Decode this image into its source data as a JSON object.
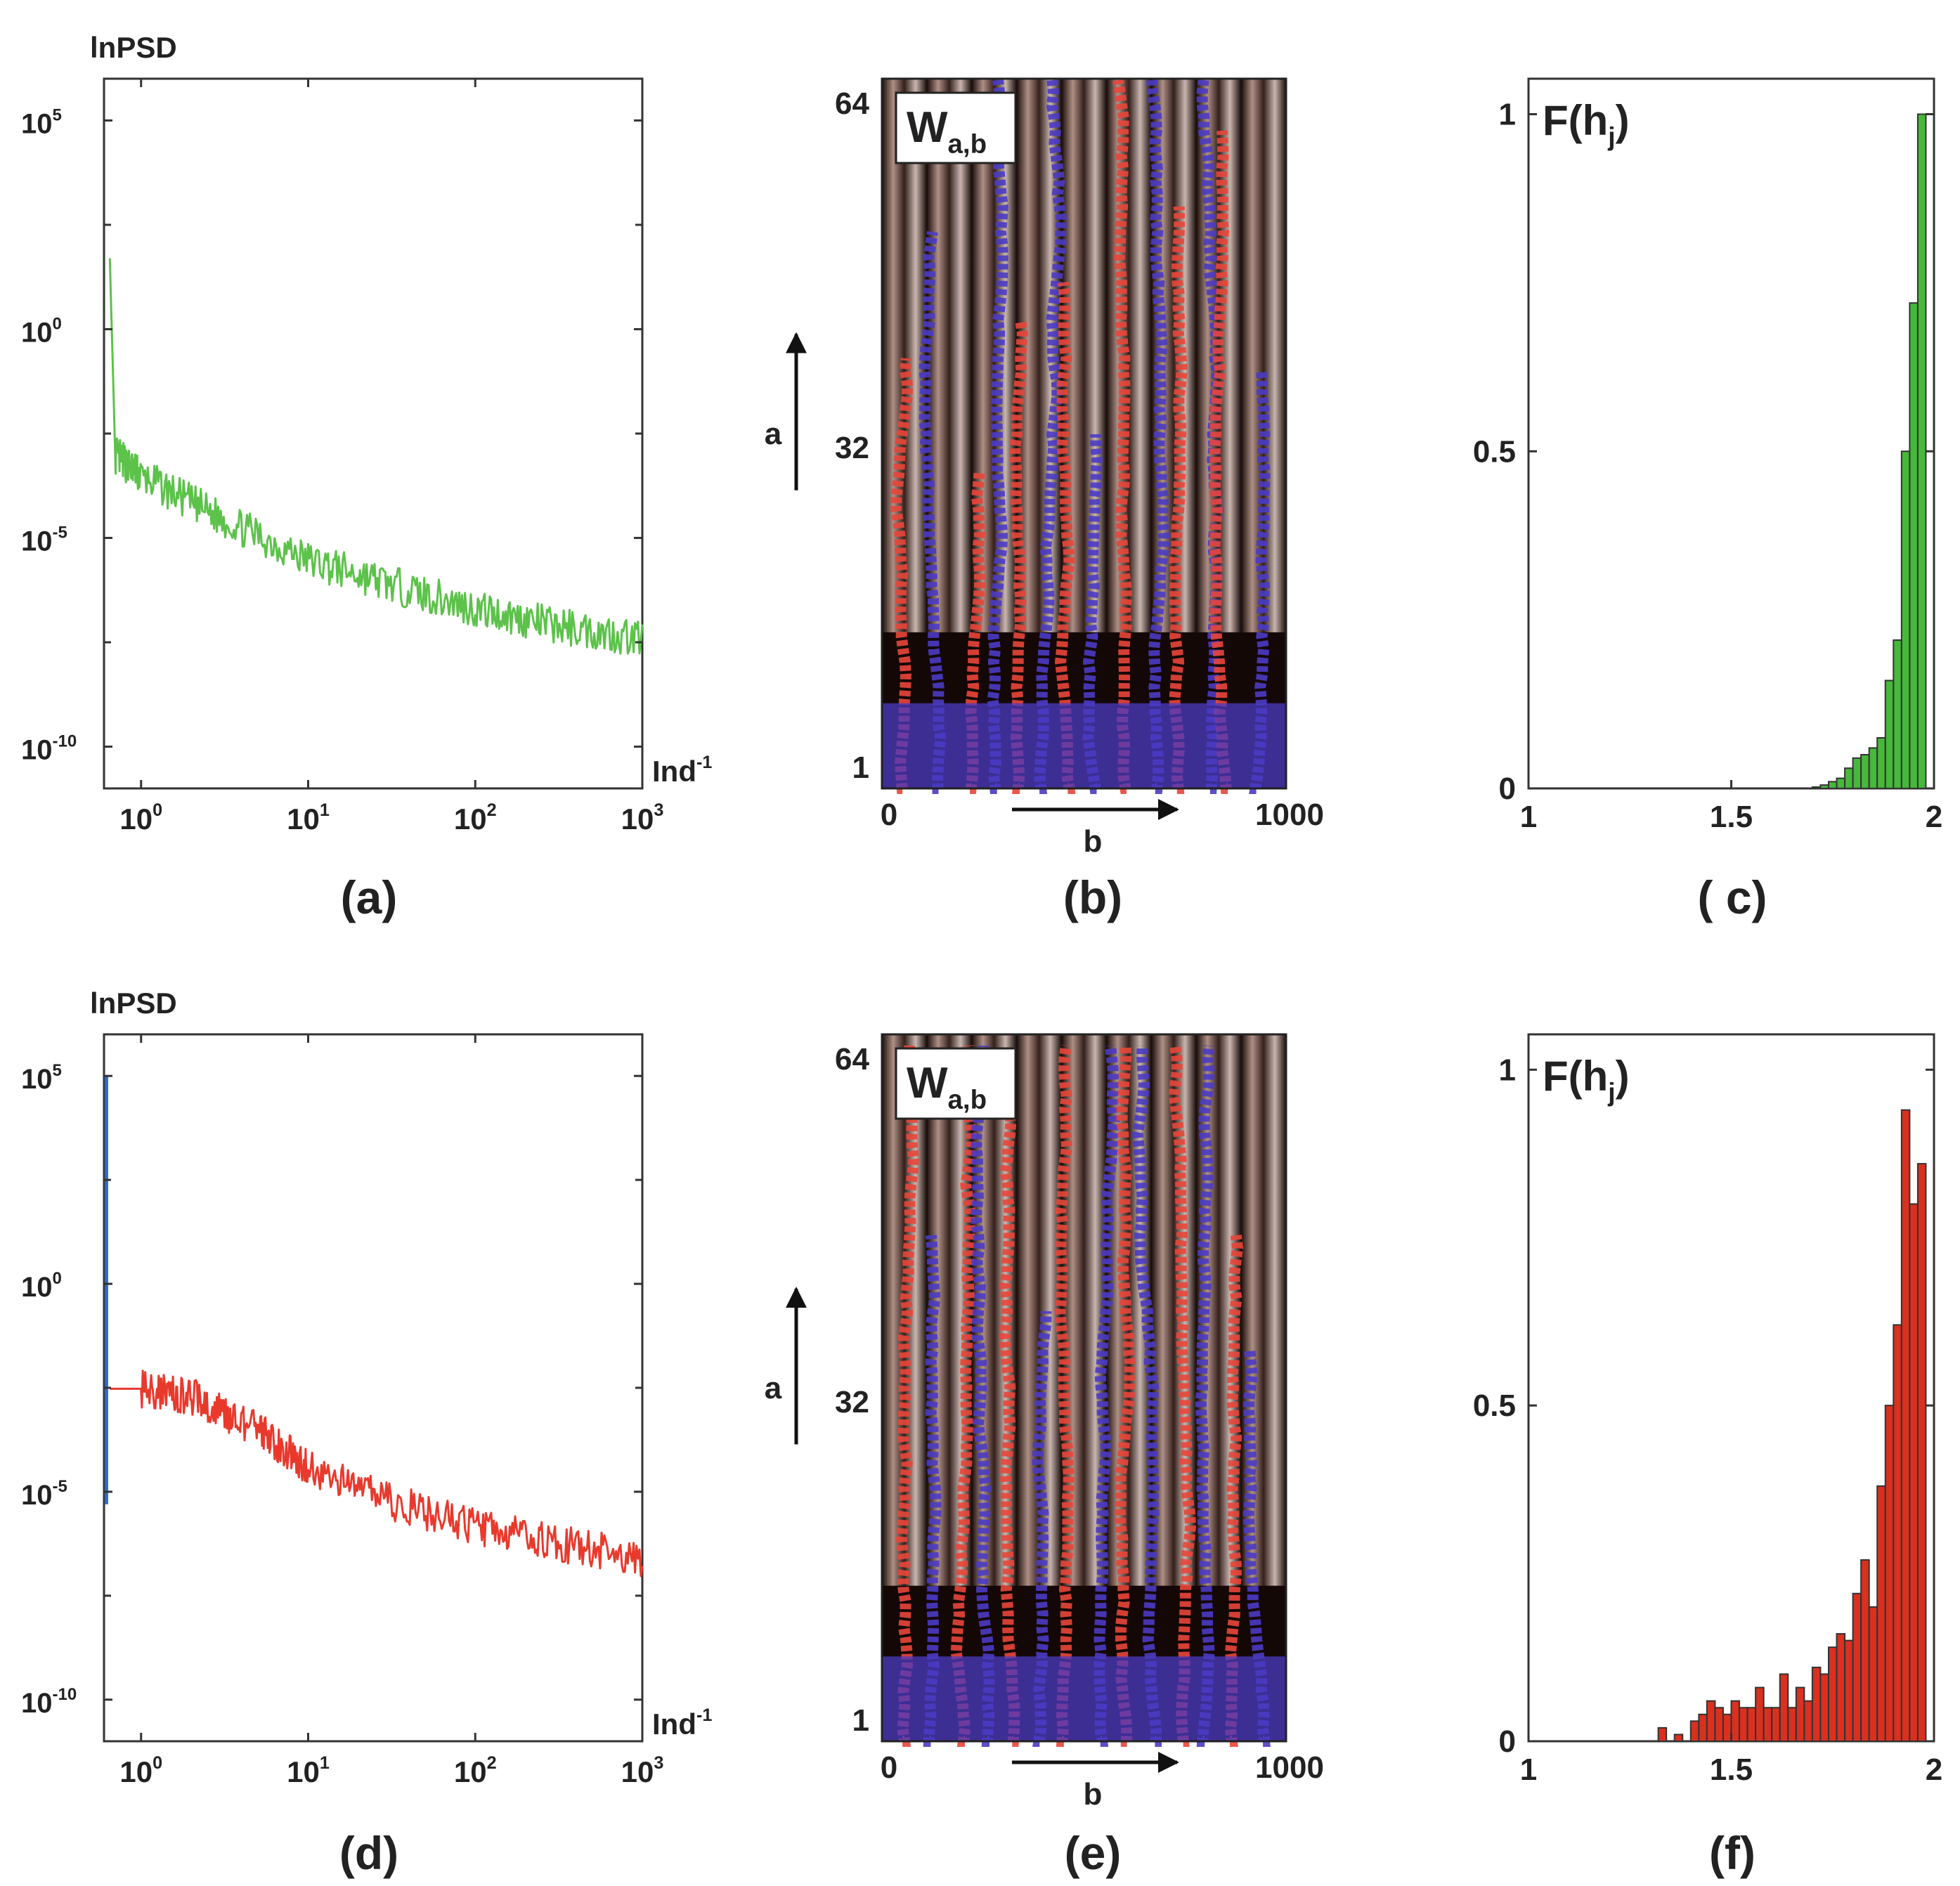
{
  "chart_data": [
    {
      "panel": "a",
      "type": "line",
      "title": "lnPSD",
      "ylabel": "lnPSD",
      "xlabel": "Ind",
      "xlabel_sup": "-1",
      "xscale": "log",
      "yscale": "log",
      "xlim": [
        0.6,
        1000
      ],
      "ylim": [
        1e-11,
        1000000.0
      ],
      "xticks": [
        {
          "base": "10",
          "exp": "0"
        },
        {
          "base": "10",
          "exp": "1"
        },
        {
          "base": "10",
          "exp": "2"
        },
        {
          "base": "10",
          "exp": "3"
        }
      ],
      "yticks": [
        {
          "base": "10",
          "exp": "5"
        },
        {
          "base": "10",
          "exp": "0"
        },
        {
          "base": "10",
          "exp": "-5"
        },
        {
          "base": "10",
          "exp": "-10"
        }
      ],
      "series": [
        {
          "name": "PSD",
          "color": "#5cc24a",
          "points": [
            [
              0.65,
              50
            ],
            [
              0.7,
              0.001
            ],
            [
              1,
              0.0003
            ],
            [
              3,
              3e-05
            ],
            [
              10,
              3e-06
            ],
            [
              30,
              8e-07
            ],
            [
              100,
              2e-07
            ],
            [
              300,
              8e-08
            ],
            [
              1000,
              4e-08
            ]
          ]
        }
      ],
      "caption": "(a)"
    },
    {
      "panel": "b",
      "type": "heatmap",
      "title": "W",
      "title_sub": "a,b",
      "xlabel": "b",
      "ylabel": "a",
      "xticks": [
        "0",
        "1000"
      ],
      "yticks": [
        "64",
        "32",
        "1"
      ],
      "marker_colors": {
        "maxima": "#e8463a",
        "minima": "#4b3bc4"
      },
      "caption": "(b)"
    },
    {
      "panel": "c",
      "type": "bar",
      "title": "F(h",
      "title_sub": "j",
      "title_end": ")",
      "xlim": [
        1,
        2
      ],
      "ylim": [
        0,
        1
      ],
      "xticks": [
        "1",
        "1.5",
        "2"
      ],
      "yticks": [
        "1",
        "0.5",
        "0"
      ],
      "color": "#46b83a",
      "bins": [
        1.7,
        1.72,
        1.74,
        1.76,
        1.78,
        1.8,
        1.82,
        1.84,
        1.86,
        1.88,
        1.9,
        1.92,
        1.94,
        1.96
      ],
      "values": [
        0.002,
        0.005,
        0.01,
        0.015,
        0.03,
        0.045,
        0.05,
        0.06,
        0.075,
        0.16,
        0.22,
        0.5,
        0.72,
        1.0
      ],
      "caption": "( c)"
    },
    {
      "panel": "d",
      "type": "line",
      "title": "lnPSD",
      "ylabel": "lnPSD",
      "xlabel": "Ind",
      "xlabel_sup": "-1",
      "xscale": "log",
      "yscale": "log",
      "xlim": [
        0.6,
        1000
      ],
      "ylim": [
        1e-11,
        1000000.0
      ],
      "xticks": [
        {
          "base": "10",
          "exp": "0"
        },
        {
          "base": "10",
          "exp": "1"
        },
        {
          "base": "10",
          "exp": "2"
        },
        {
          "base": "10",
          "exp": "3"
        }
      ],
      "yticks": [
        {
          "base": "10",
          "exp": "5"
        },
        {
          "base": "10",
          "exp": "0"
        },
        {
          "base": "10",
          "exp": "-5"
        },
        {
          "base": "10",
          "exp": "-10"
        }
      ],
      "series": [
        {
          "name": "PSD",
          "color": "#e83a2c",
          "points": [
            [
              0.65,
              0.003
            ],
            [
              1,
              0.003
            ],
            [
              2,
              0.002
            ],
            [
              5,
              0.0003
            ],
            [
              10,
              4e-05
            ],
            [
              30,
              6e-06
            ],
            [
              100,
              1.5e-06
            ],
            [
              300,
              6e-07
            ],
            [
              1000,
              2.5e-07
            ]
          ]
        },
        {
          "name": "spike",
          "color": "#2a6bc4",
          "points": [
            [
              0.62,
              100000
            ],
            [
              0.62,
              5e-06
            ]
          ]
        }
      ],
      "caption": "(d)"
    },
    {
      "panel": "e",
      "type": "heatmap",
      "title": "W",
      "title_sub": "a,b",
      "xlabel": "b",
      "ylabel": "a",
      "xticks": [
        "0",
        "1000"
      ],
      "yticks": [
        "64",
        "32",
        "1"
      ],
      "marker_colors": {
        "maxima": "#e8463a",
        "minima": "#4b3bc4"
      },
      "caption": "(e)"
    },
    {
      "panel": "f",
      "type": "bar",
      "title": "F(h",
      "title_sub": "j",
      "title_end": ")",
      "xlim": [
        1,
        2
      ],
      "ylim": [
        0,
        1
      ],
      "xticks": [
        "1",
        "1.5",
        "2"
      ],
      "yticks": [
        "1",
        "0.5",
        "0"
      ],
      "color": "#d9301f",
      "bins": [
        1.32,
        1.36,
        1.4,
        1.42,
        1.44,
        1.46,
        1.48,
        1.5,
        1.52,
        1.54,
        1.56,
        1.58,
        1.6,
        1.62,
        1.64,
        1.66,
        1.68,
        1.7,
        1.72,
        1.74,
        1.76,
        1.78,
        1.8,
        1.82,
        1.84,
        1.86,
        1.88,
        1.9,
        1.92,
        1.94,
        1.96
      ],
      "values": [
        0.02,
        0.01,
        0.03,
        0.04,
        0.06,
        0.05,
        0.04,
        0.06,
        0.05,
        0.05,
        0.08,
        0.05,
        0.05,
        0.1,
        0.05,
        0.08,
        0.06,
        0.11,
        0.1,
        0.14,
        0.16,
        0.15,
        0.22,
        0.27,
        0.2,
        0.38,
        0.5,
        0.62,
        0.94,
        0.8,
        0.86
      ],
      "caption": "(f)"
    }
  ]
}
